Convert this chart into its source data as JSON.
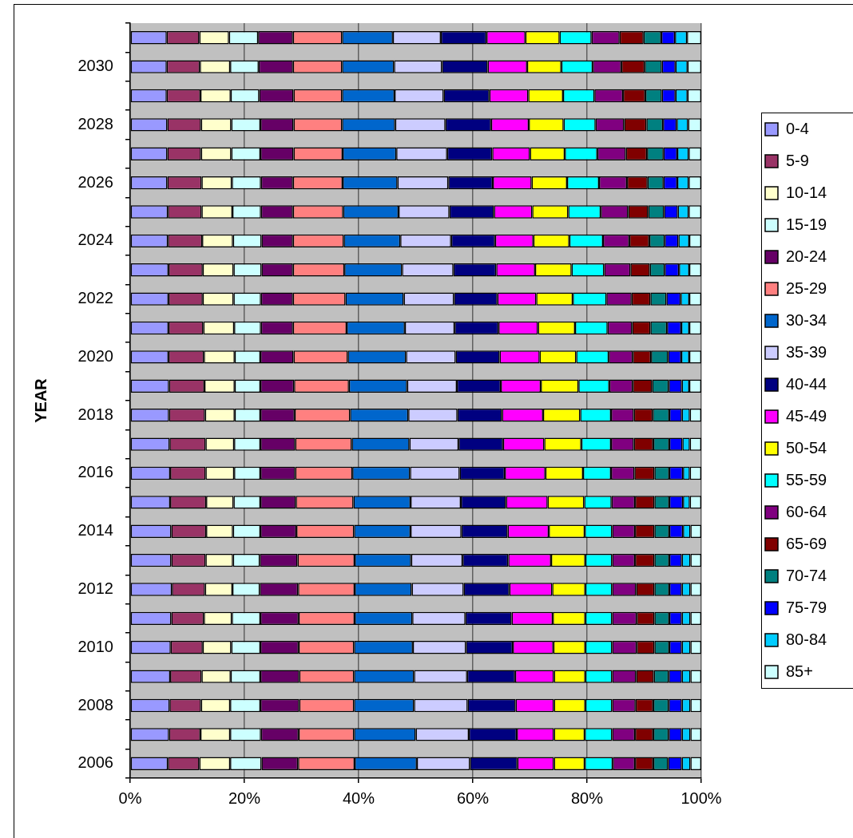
{
  "chart_data": {
    "type": "bar",
    "orientation": "horizontal",
    "stacked": true,
    "ylabel": "YEAR",
    "categories": [
      null,
      "2030",
      null,
      "2028",
      null,
      "2026",
      null,
      "2024",
      null,
      "2022",
      null,
      "2020",
      null,
      "2018",
      null,
      "2016",
      null,
      "2014",
      null,
      "2012",
      null,
      "2010",
      null,
      "2008",
      null,
      "2006"
    ],
    "series": [
      {
        "name": "0-4",
        "color": "#9999ff",
        "values": [
          6.4,
          6.4,
          6.4,
          6.5,
          6.5,
          6.5,
          6.6,
          6.6,
          6.7,
          6.7,
          6.7,
          6.7,
          6.8,
          6.8,
          6.9,
          7.0,
          7.0,
          7.2,
          7.2,
          7.3,
          7.2,
          7.1,
          7.0,
          6.9,
          6.8,
          6.6
        ]
      },
      {
        "name": "5-9",
        "color": "#993366",
        "values": [
          5.7,
          5.8,
          5.9,
          5.9,
          5.9,
          6.0,
          5.9,
          6.0,
          6.0,
          6.0,
          6.1,
          6.2,
          6.2,
          6.3,
          6.3,
          6.2,
          6.3,
          6.1,
          6.0,
          5.8,
          5.7,
          5.6,
          5.5,
          5.5,
          5.5,
          5.5
        ]
      },
      {
        "name": "10-14",
        "color": "#ffffcc",
        "values": [
          5.2,
          5.3,
          5.3,
          5.3,
          5.3,
          5.3,
          5.4,
          5.4,
          5.4,
          5.4,
          5.4,
          5.4,
          5.3,
          5.2,
          5.0,
          5.0,
          4.8,
          4.7,
          4.8,
          4.8,
          4.9,
          5.0,
          5.1,
          5.1,
          5.2,
          5.4
        ]
      },
      {
        "name": "15-19",
        "color": "#ccffff",
        "values": [
          5.1,
          5.0,
          5.0,
          5.1,
          5.1,
          5.1,
          5.0,
          5.0,
          4.9,
          4.8,
          4.7,
          4.5,
          4.5,
          4.5,
          4.6,
          4.6,
          4.7,
          4.8,
          4.7,
          4.8,
          5.0,
          5.1,
          5.2,
          5.3,
          5.4,
          5.5
        ]
      },
      {
        "name": "20-24",
        "color": "#660066",
        "values": [
          6.1,
          6.0,
          6.0,
          5.8,
          5.8,
          5.6,
          5.6,
          5.5,
          5.5,
          5.6,
          5.6,
          5.8,
          5.9,
          6.0,
          6.1,
          6.1,
          6.2,
          6.3,
          6.6,
          6.7,
          6.7,
          6.7,
          6.8,
          6.8,
          6.6,
          6.4
        ]
      },
      {
        "name": "25-29",
        "color": "#ff8080",
        "values": [
          8.6,
          8.6,
          8.5,
          8.5,
          8.6,
          8.7,
          8.8,
          8.9,
          9.0,
          9.2,
          9.4,
          9.5,
          9.6,
          9.7,
          9.9,
          10.0,
          10.1,
          10.1,
          10.0,
          9.9,
          9.8,
          9.7,
          9.6,
          9.6,
          9.7,
          9.9
        ]
      },
      {
        "name": "30-34",
        "color": "#0066cc",
        "values": [
          8.9,
          9.1,
          9.2,
          9.3,
          9.4,
          9.6,
          9.7,
          9.9,
          10.1,
          10.2,
          10.2,
          10.2,
          10.2,
          10.2,
          10.1,
          10.1,
          10.0,
          9.9,
          9.9,
          10.0,
          10.1,
          10.3,
          10.5,
          10.5,
          10.8,
          10.9
        ]
      },
      {
        "name": "35-39",
        "color": "#ccccff",
        "values": [
          8.4,
          8.4,
          8.6,
          8.8,
          8.9,
          8.9,
          8.9,
          8.9,
          9.0,
          8.8,
          8.7,
          8.7,
          8.7,
          8.6,
          8.6,
          8.7,
          8.8,
          8.9,
          9.0,
          9.1,
          9.3,
          9.3,
          9.3,
          9.4,
          9.3,
          9.3
        ]
      },
      {
        "name": "40-44",
        "color": "#000080",
        "values": [
          8.0,
          8.0,
          8.0,
          8.0,
          7.9,
          7.8,
          7.8,
          7.7,
          7.5,
          7.6,
          7.7,
          7.7,
          7.7,
          7.8,
          7.8,
          7.9,
          7.9,
          8.1,
          8.0,
          8.0,
          8.1,
          8.2,
          8.4,
          8.4,
          8.4,
          8.3
        ]
      },
      {
        "name": "45-49",
        "color": "#ff00ff",
        "values": [
          6.8,
          6.9,
          6.8,
          6.6,
          6.6,
          6.8,
          6.7,
          6.7,
          6.8,
          6.8,
          6.9,
          7.0,
          7.0,
          7.2,
          7.2,
          7.1,
          7.3,
          7.2,
          7.5,
          7.5,
          7.2,
          7.1,
          6.8,
          6.7,
          6.5,
          6.4
        ]
      },
      {
        "name": "50-54",
        "color": "#ffff00",
        "values": [
          6.0,
          6.0,
          6.1,
          6.1,
          6.1,
          6.2,
          6.3,
          6.3,
          6.4,
          6.4,
          6.5,
          6.4,
          6.6,
          6.5,
          6.5,
          6.6,
          6.4,
          6.3,
          6.0,
          5.8,
          5.7,
          5.6,
          5.5,
          5.5,
          5.4,
          5.4
        ]
      },
      {
        "name": "55-59",
        "color": "#00ffff",
        "values": [
          5.6,
          5.5,
          5.5,
          5.6,
          5.7,
          5.6,
          5.7,
          5.9,
          5.7,
          5.9,
          5.7,
          5.7,
          5.4,
          5.4,
          5.2,
          4.9,
          4.8,
          4.8,
          4.7,
          4.7,
          4.7,
          4.7,
          4.7,
          4.7,
          4.8,
          4.9
        ]
      },
      {
        "name": "60-64",
        "color": "#800080",
        "values": [
          4.9,
          5.0,
          5.0,
          5.0,
          5.0,
          4.9,
          4.8,
          4.6,
          4.6,
          4.4,
          4.3,
          4.2,
          4.1,
          4.0,
          4.0,
          4.1,
          4.1,
          4.0,
          4.0,
          4.2,
          4.3,
          4.3,
          4.2,
          4.1,
          4.0,
          3.9
        ]
      },
      {
        "name": "65-69",
        "color": "#800000",
        "values": [
          4.2,
          4.1,
          3.9,
          3.9,
          3.7,
          3.6,
          3.5,
          3.5,
          3.4,
          3.3,
          3.2,
          3.2,
          3.4,
          3.3,
          3.4,
          3.5,
          3.4,
          3.4,
          3.4,
          3.2,
          3.1,
          3.1,
          3.1,
          3.1,
          3.2,
          3.2
        ]
      },
      {
        "name": "70-74",
        "color": "#008080",
        "values": [
          3.1,
          3.0,
          2.9,
          2.9,
          2.9,
          2.8,
          2.8,
          2.7,
          2.6,
          2.8,
          2.9,
          3.0,
          2.9,
          2.9,
          2.8,
          2.6,
          2.6,
          2.6,
          2.6,
          2.6,
          2.6,
          2.6,
          2.6,
          2.7,
          2.7,
          2.6
        ]
      },
      {
        "name": "75-79",
        "color": "#0000ff",
        "values": [
          2.4,
          2.4,
          2.4,
          2.4,
          2.4,
          2.4,
          2.4,
          2.4,
          2.5,
          2.5,
          2.5,
          2.3,
          2.3,
          2.2,
          2.3,
          2.4,
          2.4,
          2.4,
          2.2,
          2.2,
          2.2,
          2.2,
          2.3,
          2.3,
          2.3,
          2.4
        ]
      },
      {
        "name": "80-84",
        "color": "#00ccff",
        "values": [
          2.1,
          2.1,
          2.1,
          2.0,
          2.0,
          2.0,
          1.9,
          1.9,
          1.8,
          1.5,
          1.4,
          1.4,
          1.3,
          1.4,
          1.3,
          1.2,
          1.2,
          1.3,
          1.5,
          1.5,
          1.5,
          1.5,
          1.5,
          1.5,
          1.5,
          1.5
        ]
      },
      {
        "name": "85+",
        "color": "#ccffff",
        "values": [
          2.5,
          2.4,
          2.4,
          2.3,
          2.2,
          2.2,
          2.2,
          2.1,
          2.1,
          2.1,
          2.1,
          2.1,
          2.1,
          2.0,
          2.0,
          2.0,
          2.0,
          1.9,
          1.9,
          1.9,
          1.9,
          1.9,
          1.9,
          1.9,
          1.9,
          1.9
        ]
      }
    ],
    "xlim": [
      0,
      100
    ],
    "xticks": [
      {
        "value": 0,
        "label": "0%"
      },
      {
        "value": 20,
        "label": "20%"
      },
      {
        "value": 40,
        "label": "40%"
      },
      {
        "value": 60,
        "label": "60%"
      },
      {
        "value": 80,
        "label": "80%"
      },
      {
        "value": 100,
        "label": "100%"
      }
    ],
    "grid": "x",
    "legend": "right"
  }
}
